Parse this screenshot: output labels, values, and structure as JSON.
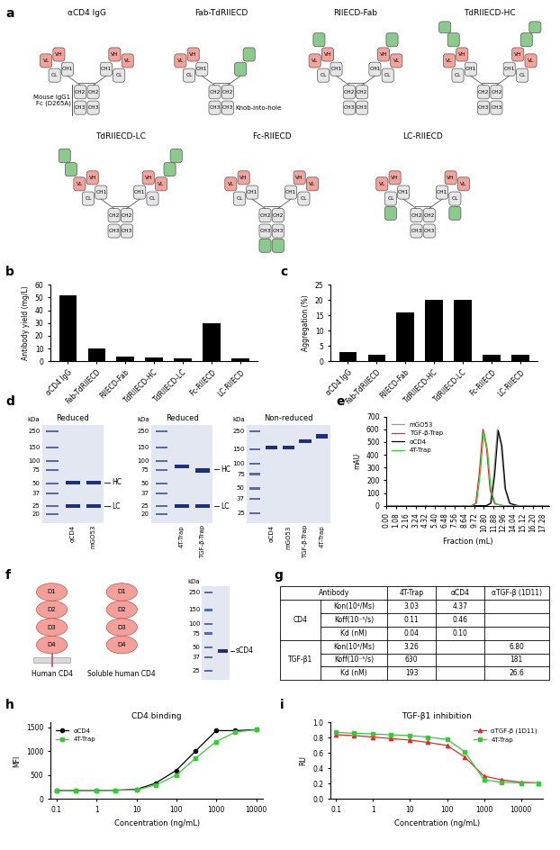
{
  "panel_labels": [
    "a",
    "b",
    "c",
    "d",
    "e",
    "f",
    "g",
    "h",
    "i"
  ],
  "diagram_a": {
    "constructs": [
      "αCD4 IgG",
      "Fab-TdRIIECD",
      "RIIECD-Fab",
      "TdRIIECD-HC",
      "TdRIIECD-LC",
      "Fc-RIIECD",
      "LC-RIIECD"
    ],
    "domain_labels": {
      "heavy": [
        "VH",
        "CH1"
      ],
      "light": [
        "VL",
        "CL"
      ],
      "fc": [
        "CH2",
        "CH3"
      ]
    },
    "annotations": {
      "fc": "Mouse IgG1\nFc (D265A)",
      "knob": "Knob-into-hole"
    }
  },
  "chart_data": [
    {
      "type": "bar",
      "ylabel": "Antibody yield (mg/L)",
      "categories": [
        "αCD4 IgG",
        "Fab-TdRIIECD",
        "RIIECD-Fab",
        "TdRIIECD-HC",
        "TdRIIECD-LC",
        "Fc-RIIECD",
        "LC-RIIECD"
      ],
      "values": [
        52,
        10,
        4,
        3,
        2,
        30,
        2
      ],
      "color": "#000000",
      "ylim": [
        0,
        60
      ],
      "yticks": [
        0,
        10,
        20,
        30,
        40,
        50,
        60
      ]
    },
    {
      "type": "bar",
      "ylabel": "Aggregation (%)",
      "categories": [
        "αCD4 IgG",
        "Fab-TdRIIECD",
        "RIIECD-Fab",
        "TdRIIECD-HC",
        "TdRIIECD-LC",
        "Fc-RIIECD",
        "LC-RIIECD"
      ],
      "values": [
        3,
        2,
        16,
        20,
        20,
        2,
        2
      ],
      "color": "#000000",
      "ylim": [
        0,
        25
      ],
      "yticks": [
        0,
        5,
        10,
        15,
        20,
        25
      ]
    },
    {
      "type": "line",
      "xlabel": "Fraction (mL)",
      "ylabel": "mAU",
      "xlim": [
        0,
        18
      ],
      "xticks": [
        {
          "value": 0,
          "label": "0.00"
        },
        {
          "value": 1.08,
          "label": "1.08"
        },
        {
          "value": 2.16,
          "label": "2.16"
        },
        {
          "value": 3.24,
          "label": "3.24"
        },
        {
          "value": 4.32,
          "label": "4.32"
        },
        {
          "value": 5.4,
          "label": "5.40"
        },
        {
          "value": 6.48,
          "label": "6.48"
        },
        {
          "value": 7.56,
          "label": "7.56"
        },
        {
          "value": 8.64,
          "label": "8.64"
        },
        {
          "value": 9.72,
          "label": "9.72"
        },
        {
          "value": 10.8,
          "label": "10.80"
        },
        {
          "value": 11.88,
          "label": "11.88"
        },
        {
          "value": 12.96,
          "label": "12.96"
        },
        {
          "value": 14.04,
          "label": "14.04"
        },
        {
          "value": 15.12,
          "label": "15.12"
        },
        {
          "value": 16.2,
          "label": "16.20"
        },
        {
          "value": 17.28,
          "label": "17.28"
        }
      ],
      "ylim": [
        0,
        700
      ],
      "yticks": [
        0,
        100,
        200,
        300,
        400,
        500,
        600,
        700
      ],
      "legend": "upper left",
      "series": [
        {
          "name": "mGO53",
          "color": "#9a9a9a",
          "marker": "none",
          "line_style": "solid",
          "x": [
            0,
            9.5,
            11.0,
            11.5,
            11.9,
            12.3,
            12.7,
            13.1,
            13.6,
            14.5,
            18
          ],
          "values": [
            0,
            0,
            0,
            20,
            250,
            600,
            480,
            140,
            20,
            0,
            0
          ]
        },
        {
          "name": "TGF-β-Trap",
          "color": "#e8262d",
          "marker": "none",
          "line_style": "solid",
          "x": [
            0,
            8.0,
            9.4,
            9.9,
            10.3,
            10.7,
            11.1,
            11.5,
            12.0,
            13.0,
            18
          ],
          "values": [
            0,
            0,
            0,
            20,
            260,
            600,
            450,
            120,
            15,
            0,
            0
          ]
        },
        {
          "name": "αCD4",
          "color": "#000000",
          "marker": "none",
          "line_style": "solid",
          "x": [
            0,
            9.5,
            11.1,
            11.6,
            12.0,
            12.4,
            12.8,
            13.2,
            13.7,
            14.6,
            18
          ],
          "values": [
            0,
            0,
            0,
            20,
            240,
            590,
            470,
            130,
            18,
            0,
            0
          ]
        },
        {
          "name": "4T-Trap",
          "color": "#33cc33",
          "marker": "none",
          "line_style": "solid",
          "x": [
            0,
            8.0,
            9.5,
            10.0,
            10.4,
            10.8,
            11.2,
            11.6,
            12.1,
            13.0,
            18
          ],
          "values": [
            0,
            0,
            0,
            20,
            250,
            590,
            440,
            115,
            15,
            0,
            0
          ]
        }
      ]
    },
    {
      "type": "line",
      "title": "CD4 binding",
      "xlabel": "Concentration (ng/mL)",
      "ylabel": "MFI",
      "log": "x",
      "xlim": [
        0.07,
        15000
      ],
      "xticks": [
        0.1,
        1,
        10,
        100,
        1000,
        10000
      ],
      "ylim": [
        0,
        1600
      ],
      "yticks": [
        0,
        500,
        1000,
        1500
      ],
      "legend": "upper left",
      "series": [
        {
          "name": "αCD4",
          "color": "#000000",
          "marker": "circle",
          "line_style": "solid",
          "x": [
            0.1,
            0.3,
            1,
            3,
            10,
            30,
            100,
            300,
            1000,
            3000,
            10000
          ],
          "values": [
            180,
            180,
            180,
            185,
            200,
            330,
            600,
            1000,
            1430,
            1430,
            1450
          ]
        },
        {
          "name": "4T-Trap",
          "color": "#33cc33",
          "marker": "square",
          "line_style": "solid",
          "x": [
            0.1,
            0.3,
            1,
            3,
            10,
            30,
            100,
            300,
            1000,
            3000,
            10000
          ],
          "values": [
            180,
            180,
            180,
            180,
            190,
            290,
            500,
            850,
            1200,
            1400,
            1450
          ]
        }
      ]
    },
    {
      "type": "line",
      "title": "TGF-β1 inhibition",
      "xlabel": "Concentration (ng/mL)",
      "ylabel": "RU",
      "log": "x",
      "xlim": [
        0.07,
        40000
      ],
      "xticks": [
        0.1,
        1,
        10,
        100,
        1000,
        10000
      ],
      "ylim": [
        0.0,
        1.0
      ],
      "yticks": [
        0.0,
        0.2,
        0.4,
        0.6,
        0.8,
        1.0
      ],
      "legend": "upper right",
      "series": [
        {
          "name": "αTGF-β (1D11)",
          "color": "#e8262d",
          "marker": "triangle",
          "line_style": "solid",
          "x": [
            0.1,
            0.3,
            1,
            3,
            10,
            30,
            100,
            300,
            1000,
            3000,
            10000,
            30000
          ],
          "values": [
            0.84,
            0.83,
            0.81,
            0.79,
            0.77,
            0.74,
            0.7,
            0.55,
            0.3,
            0.25,
            0.22,
            0.21
          ]
        },
        {
          "name": "4T-Trap",
          "color": "#33cc33",
          "marker": "square",
          "line_style": "solid",
          "x": [
            0.1,
            0.3,
            1,
            3,
            10,
            30,
            100,
            300,
            1000,
            3000,
            10000,
            30000
          ],
          "values": [
            0.87,
            0.86,
            0.85,
            0.84,
            0.83,
            0.81,
            0.78,
            0.62,
            0.25,
            0.22,
            0.21,
            0.21
          ]
        }
      ]
    }
  ],
  "gels_d": {
    "unit": "kDa",
    "gels": [
      {
        "condition": "Reduced",
        "markers": [
          250,
          150,
          100,
          75,
          50,
          37,
          25,
          20
        ],
        "lanes": [
          {
            "name": "αCD4",
            "bands_kda": [
              52,
              25
            ]
          },
          {
            "name": "mGO53",
            "bands_kda": [
              52,
              25
            ]
          }
        ],
        "band_labels": [
          {
            "label": "HC",
            "kda": 52
          },
          {
            "label": "LC",
            "kda": 25
          }
        ]
      },
      {
        "condition": "Reduced",
        "markers": [
          250,
          150,
          100,
          75,
          50,
          37,
          25,
          20
        ],
        "lanes": [
          {
            "name": "4T-Trap",
            "bands_kda": [
              85,
              25
            ]
          },
          {
            "name": "TGF-β-Trap",
            "bands_kda": [
              75,
              25
            ]
          }
        ],
        "band_labels": [
          {
            "label": "HC",
            "kda": 78
          },
          {
            "label": "LC",
            "kda": 25
          }
        ]
      },
      {
        "condition": "Non-reduced",
        "markers": [
          250,
          150,
          100,
          75,
          50,
          37,
          25
        ],
        "lanes": [
          {
            "name": "αCD4",
            "bands_kda": [
              160
            ]
          },
          {
            "name": "mGO53",
            "bands_kda": [
              160
            ]
          },
          {
            "name": "TGF-β-Trap",
            "bands_kda": [
              190
            ]
          },
          {
            "name": "4T-Trap",
            "bands_kda": [
              220
            ]
          }
        ],
        "band_labels": []
      }
    ]
  },
  "diagram_f": {
    "domains": [
      "D1",
      "D2",
      "D3",
      "D4"
    ],
    "labels": [
      "Human CD4",
      "Soluble human CD4"
    ],
    "gel": {
      "unit": "kDa",
      "markers": [
        250,
        150,
        100,
        75,
        50,
        37,
        25
      ],
      "lanes": [
        {
          "bands_kda": [
            45
          ]
        }
      ],
      "band_labels": [
        {
          "label": "sCD4",
          "kda": 45
        }
      ]
    }
  },
  "table_g": {
    "header": [
      "Antibody",
      "4T-Trap",
      "αCD4",
      "αTGF-β (1D11)"
    ],
    "groups": [
      {
        "name": "CD4",
        "rows": [
          [
            "Kon(10⁴/Ms)",
            "3.03",
            "4.37",
            null
          ],
          [
            "Koff(10⁻⁵/s)",
            "0.11",
            "0.46",
            null
          ],
          [
            "Kd (nM)",
            "0.04",
            "0.10",
            null
          ]
        ]
      },
      {
        "name": "TGF-β1",
        "rows": [
          [
            "Kon(10⁴/Ms)",
            "3.26",
            null,
            "6.80"
          ],
          [
            "Koff(10⁻⁵/s)",
            "630",
            null,
            "181"
          ],
          [
            "Kd (nM)",
            "193",
            null,
            "26.6"
          ]
        ]
      }
    ]
  }
}
